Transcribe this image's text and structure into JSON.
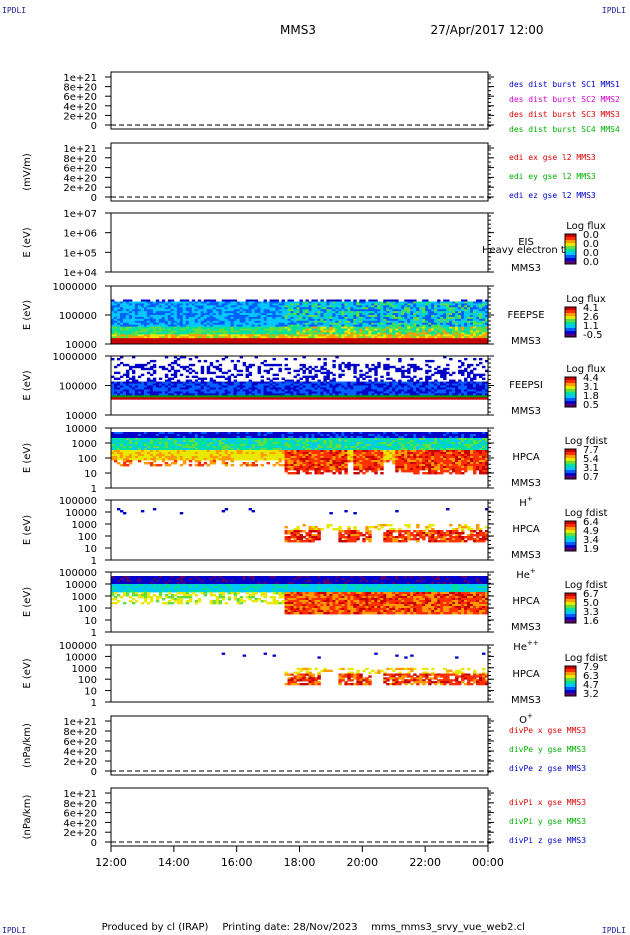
{
  "header": {
    "corner_label": "IPDLI",
    "spacecraft": "MMS3",
    "datetime": "27/Apr/2017 12:00"
  },
  "footer": {
    "producer": "Produced by cl (IRAP)",
    "printing_date": "Printing date: 28/Nov/2023",
    "file": "mms_mms3_srvy_vue_web2.cl"
  },
  "colormap": [
    "#5a0070",
    "#0000c8",
    "#0060ff",
    "#00c8ff",
    "#00e0a0",
    "#60e040",
    "#e8e800",
    "#ff9a00",
    "#ff3000",
    "#c80000"
  ],
  "chart_data": {
    "type": "heatmap",
    "shared_x": {
      "ticks": [
        "12:00",
        "14:00",
        "16:00",
        "18:00",
        "20:00",
        "22:00",
        "00:00"
      ],
      "range_hours": [
        12,
        24
      ]
    },
    "panels": [
      {
        "kind": "line",
        "ylabel": "",
        "yticks": [
          "1e+21",
          "8e+20",
          "6e+20",
          "4e+20",
          "2e+20",
          "0"
        ],
        "ylim": [
          0,
          1e+21
        ],
        "zero_line": true,
        "legend": [
          {
            "text": "des dist burst SC1 MMS1",
            "color": "#0000c8"
          },
          {
            "text": "des dist burst SC2 MMS2",
            "color": "#d000d0"
          },
          {
            "text": "des dist burst SC3 MMS3",
            "color": "#e00000"
          },
          {
            "text": "des dist burst SC4 MMS4",
            "color": "#00b000"
          }
        ]
      },
      {
        "kind": "line",
        "ylabel": "(mV/m)",
        "yticks": [
          "1e+21",
          "8e+20",
          "6e+20",
          "4e+20",
          "2e+20",
          "0"
        ],
        "ylim": [
          0,
          1e+21
        ],
        "zero_line": true,
        "legend": [
          {
            "text": "edi ex gse l2 MMS3",
            "color": "#e00000"
          },
          {
            "text": "edi ey gse l2 MMS3",
            "color": "#00b000"
          },
          {
            "text": "edi ez gse l2 MMS3",
            "color": "#0000c8"
          }
        ]
      },
      {
        "kind": "spectrogram",
        "ylabel": "E (eV)",
        "yticks": [
          "1e+07",
          "1e+06",
          "1e+05",
          "1e+04"
        ],
        "log_y": true,
        "ylim": [
          10000,
          10000000
        ],
        "labels": [
          "EIS",
          "MMS3"
        ],
        "overlay_text": "Heavy electron to",
        "colorbar_title": "Log flux",
        "colorbar_ticks": [
          "0.0",
          "0.0",
          "0.0",
          "0.0"
        ],
        "profile": "empty"
      },
      {
        "kind": "spectrogram",
        "ylabel": "E (eV)",
        "yticks": [
          "1000000",
          "100000",
          "10000"
        ],
        "log_y": true,
        "ylim": [
          10000,
          1000000
        ],
        "labels": [
          "FEEPSE",
          "MMS3"
        ],
        "colorbar_title": "Log flux",
        "colorbar_ticks": [
          "4.1",
          "2.6",
          "1.1",
          "-0.5"
        ],
        "profile": "feeps_e"
      },
      {
        "kind": "spectrogram",
        "ylabel": "E (eV)",
        "yticks": [
          "1000000",
          "100000",
          "10000"
        ],
        "log_y": true,
        "ylim": [
          10000,
          1000000
        ],
        "labels": [
          "FEEPSI",
          "MMS3"
        ],
        "colorbar_title": "Log flux",
        "colorbar_ticks": [
          "4.4",
          "3.1",
          "1.8",
          "0.5"
        ],
        "profile": "feeps_i"
      },
      {
        "kind": "spectrogram",
        "ylabel": "E (eV)",
        "yticks": [
          "10000",
          "1000",
          "100",
          "10",
          "1"
        ],
        "log_y": true,
        "ylim": [
          1,
          40000
        ],
        "labels": [
          "HPCA",
          "MMS3"
        ],
        "species": "H",
        "species_sup": "+",
        "colorbar_title": "Log fdist",
        "colorbar_ticks": [
          "7.7",
          "5.4",
          "3.1",
          "0.7"
        ],
        "profile": "hplus"
      },
      {
        "kind": "spectrogram",
        "ylabel": "E (eV)",
        "yticks": [
          "100000",
          "10000",
          "1000",
          "100",
          "10",
          "1"
        ],
        "log_y": true,
        "ylim": [
          1,
          100000
        ],
        "labels": [
          "HPCA",
          "MMS3"
        ],
        "species": "He",
        "species_sup": "+",
        "colorbar_title": "Log fdist",
        "colorbar_ticks": [
          "6.4",
          "4.9",
          "3.4",
          "1.9"
        ],
        "profile": "heplus"
      },
      {
        "kind": "spectrogram",
        "ylabel": "E (eV)",
        "yticks": [
          "100000",
          "10000",
          "1000",
          "100",
          "10",
          "1"
        ],
        "log_y": true,
        "ylim": [
          1,
          100000
        ],
        "labels": [
          "HPCA",
          "MMS3"
        ],
        "species": "He",
        "species_sup": "++",
        "colorbar_title": "Log fdist",
        "colorbar_ticks": [
          "6.7",
          "5.0",
          "3.3",
          "1.6"
        ],
        "profile": "hepp"
      },
      {
        "kind": "spectrogram",
        "ylabel": "E (eV)",
        "yticks": [
          "100000",
          "10000",
          "1000",
          "100",
          "10",
          "1"
        ],
        "log_y": true,
        "ylim": [
          1,
          100000
        ],
        "labels": [
          "HPCA",
          "MMS3"
        ],
        "species": "O",
        "species_sup": "+",
        "colorbar_title": "Log fdist",
        "colorbar_ticks": [
          "7.9",
          "6.3",
          "4.7",
          "3.2"
        ],
        "profile": "oplus"
      },
      {
        "kind": "line",
        "ylabel": "(nPa/km)",
        "yticks": [
          "1e+21",
          "8e+20",
          "6e+20",
          "4e+20",
          "2e+20",
          "0"
        ],
        "ylim": [
          0,
          1e+21
        ],
        "zero_line": true,
        "legend": [
          {
            "text": "divPe x gse MMS3",
            "color": "#e00000"
          },
          {
            "text": "divPe y gse MMS3",
            "color": "#00b000"
          },
          {
            "text": "divPe z gse MMS3",
            "color": "#0000c8"
          }
        ]
      },
      {
        "kind": "line",
        "ylabel": "(nPa/km)",
        "yticks": [
          "1e+21",
          "8e+20",
          "6e+20",
          "4e+20",
          "2e+20",
          "0"
        ],
        "ylim": [
          0,
          1e+21
        ],
        "zero_line": true,
        "legend": [
          {
            "text": "divPi x gse MMS3",
            "color": "#e00000"
          },
          {
            "text": "divPi y gse MMS3",
            "color": "#00b000"
          },
          {
            "text": "divPi z gse MMS3",
            "color": "#0000c8"
          }
        ]
      }
    ]
  }
}
